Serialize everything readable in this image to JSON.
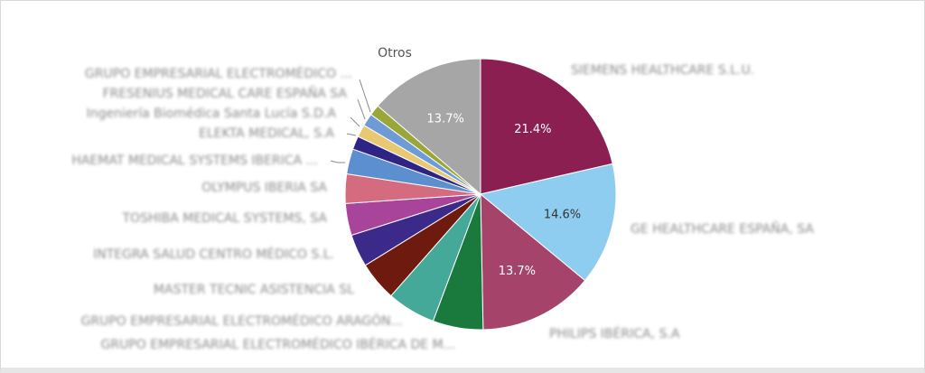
{
  "chart_data": {
    "type": "pie",
    "slices": [
      {
        "label": "SIEMENS HEALTHCARE S.L.U.",
        "value": 21.4,
        "pct_label": "21.4%",
        "color": "#8b1f52",
        "pct_text": "light",
        "name_visible": "blurred"
      },
      {
        "label": "GE HEALTHCARE ESPAÑA, SA",
        "value": 14.6,
        "pct_label": "14.6%",
        "color": "#8ecdef",
        "pct_text": "dark",
        "name_visible": "blurred"
      },
      {
        "label": "PHILIPS IBÉRICA, S.A",
        "value": 13.7,
        "pct_label": "13.7%",
        "color": "#a5436a",
        "pct_text": "light",
        "name_visible": "blurred"
      },
      {
        "label": "GRUPO EMPRESARIAL ELECTROMÉDICO IBÉRICA DE M...",
        "value": 6.0,
        "color": "#1a7a3e",
        "name_visible": "blurred"
      },
      {
        "label": "GRUPO EMPRESARIAL ELECTROMÉDICO ARAGÓN...",
        "value": 5.8,
        "color": "#45a99a",
        "name_visible": "blurred"
      },
      {
        "label": "MASTER TECNIC ASISTENCIA SL",
        "value": 4.7,
        "color": "#6e1a0e",
        "name_visible": "blurred"
      },
      {
        "label": "INTEGRA SALUD CENTRO MÉDICO S.L.",
        "value": 3.9,
        "color": "#3b2a8a",
        "name_visible": "blurred"
      },
      {
        "label": "TOSHIBA MEDICAL SYSTEMS, SA",
        "value": 3.8,
        "color": "#a8449a",
        "name_visible": "blurred"
      },
      {
        "label": "OLYMPUS IBERIA SA",
        "value": 3.5,
        "color": "#d46b7f",
        "name_visible": "blurred"
      },
      {
        "label": "HAEMAT MEDICAL SYSTEMS IBERICA ...",
        "value": 3.0,
        "color": "#5b8fcf",
        "name_visible": "blurred"
      },
      {
        "label": "ELEKTA MEDICAL, S.A",
        "value": 1.6,
        "color": "#2d2486",
        "name_visible": "blurred"
      },
      {
        "label": "Ingeniería Biomédica Santa Lucía S.D.A",
        "value": 1.5,
        "color": "#e8c873",
        "name_visible": "blurred"
      },
      {
        "label": "FRESENIUS MEDICAL CARE ESPAÑA SA",
        "value": 1.5,
        "color": "#6e9bd6",
        "name_visible": "blurred"
      },
      {
        "label": "GRUPO EMPRESARIAL ELECTROMÉDICO ...",
        "value": 1.3,
        "color": "#9aa53a",
        "name_visible": "blurred"
      },
      {
        "label": "Otros",
        "value": 13.7,
        "pct_label": "13.7%",
        "color": "#a6a6a6",
        "pct_text": "light",
        "name_visible": "clear"
      }
    ]
  }
}
